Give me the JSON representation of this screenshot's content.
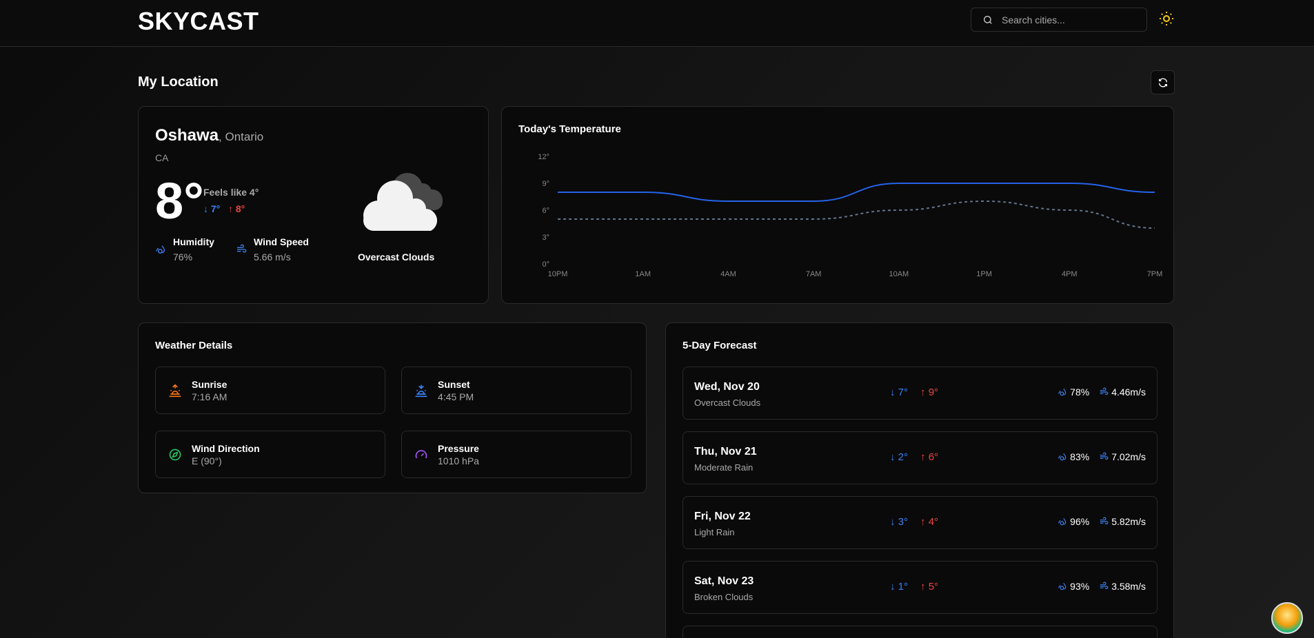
{
  "header": {
    "logo": "SKYCAST",
    "search_placeholder": "Search cities...",
    "theme_icon": "sun-icon"
  },
  "section": {
    "title": "My Location",
    "refresh_icon": "refresh-icon"
  },
  "current": {
    "city": "Oshawa",
    "region": ", Ontario",
    "country": "CA",
    "temp": "8°",
    "feels_like": "Feels like 4°",
    "min": "7°",
    "max": "8°",
    "humidity_label": "Humidity",
    "humidity": "76%",
    "wind_label": "Wind Speed",
    "wind": "5.66 m/s",
    "condition": "Overcast Clouds"
  },
  "colors": {
    "accent": "#3b82f6",
    "hot": "#ef4444",
    "background": "#0a0a0a"
  },
  "chart_data": {
    "type": "line",
    "title": "Today's Temperature",
    "categories": [
      "10PM",
      "1AM",
      "4AM",
      "7AM",
      "10AM",
      "1PM",
      "4PM",
      "7PM"
    ],
    "yticks": [
      "0°",
      "3°",
      "6°",
      "9°",
      "12°"
    ],
    "ylim": [
      0,
      12
    ],
    "grid": false,
    "series": [
      {
        "style": "solid",
        "color": "#2563eb",
        "values": [
          8,
          8,
          7,
          7,
          9,
          9,
          9,
          8
        ]
      },
      {
        "style": "dashed",
        "color": "#64748b",
        "values": [
          5,
          5,
          5,
          5,
          6,
          7,
          6,
          4
        ]
      }
    ]
  },
  "details": {
    "title": "Weather Details",
    "items": [
      {
        "label": "Sunrise",
        "value": "7:16 AM",
        "icon": "sunrise-icon"
      },
      {
        "label": "Sunset",
        "value": "4:45 PM",
        "icon": "sunset-icon"
      },
      {
        "label": "Wind Direction",
        "value": "E (90°)",
        "icon": "compass-icon"
      },
      {
        "label": "Pressure",
        "value": "1010 hPa",
        "icon": "gauge-icon"
      }
    ]
  },
  "forecast": {
    "title": "5-Day Forecast",
    "days": [
      {
        "day": "Wed, Nov 20",
        "cond": "Overcast Clouds",
        "min": "7°",
        "max": "9°",
        "humidity": "78%",
        "wind": "4.46m/s"
      },
      {
        "day": "Thu, Nov 21",
        "cond": "Moderate Rain",
        "min": "2°",
        "max": "6°",
        "humidity": "83%",
        "wind": "7.02m/s"
      },
      {
        "day": "Fri, Nov 22",
        "cond": "Light Rain",
        "min": "3°",
        "max": "4°",
        "humidity": "96%",
        "wind": "5.82m/s"
      },
      {
        "day": "Sat, Nov 23",
        "cond": "Broken Clouds",
        "min": "1°",
        "max": "5°",
        "humidity": "93%",
        "wind": "3.58m/s"
      }
    ]
  }
}
